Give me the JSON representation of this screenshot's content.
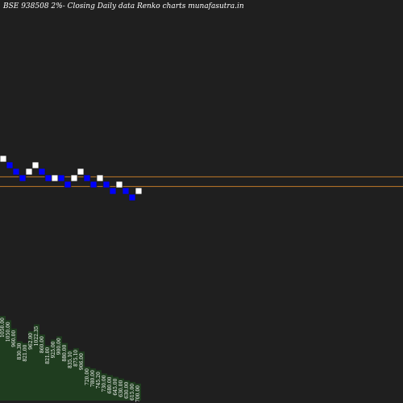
{
  "title": "BSE 938508  2%-  Closing Daily data  Renko  charts munafasutra.in",
  "colors": {
    "background": "#1f1f1f",
    "up_brick": "#ffffff",
    "down_brick": "#0000ff",
    "brick_outline": "#1f1f1f",
    "level_line": "#c07a2a",
    "volume_fill": "#1f3d1f"
  },
  "chart_data": {
    "type": "renko",
    "brick_size_label": "2%",
    "bricks": [
      {
        "dir": "up",
        "level": 0
      },
      {
        "dir": "down",
        "level": -1
      },
      {
        "dir": "down",
        "level": -2
      },
      {
        "dir": "down",
        "level": -3
      },
      {
        "dir": "up",
        "level": -2
      },
      {
        "dir": "up",
        "level": -1
      },
      {
        "dir": "down",
        "level": -2
      },
      {
        "dir": "down",
        "level": -3
      },
      {
        "dir": "up",
        "level": -3
      },
      {
        "dir": "down",
        "level": -3
      },
      {
        "dir": "down",
        "level": -4
      },
      {
        "dir": "up",
        "level": -3
      },
      {
        "dir": "up",
        "level": -2
      },
      {
        "dir": "down",
        "level": -3
      },
      {
        "dir": "down",
        "level": -4
      },
      {
        "dir": "up",
        "level": -3
      },
      {
        "dir": "down",
        "level": -4
      },
      {
        "dir": "down",
        "level": -5
      },
      {
        "dir": "up",
        "level": -4
      },
      {
        "dir": "down",
        "level": -5
      },
      {
        "dir": "down",
        "level": -6
      },
      {
        "dir": "up",
        "level": -5
      }
    ],
    "reference_levels": [
      -3.3,
      -4.8
    ],
    "volume": {
      "labels": [
        "1050.00",
        "1050.00",
        "960.00",
        "830.30",
        "821.00",
        "962.00",
        "1022.35",
        "860.00",
        "821.00",
        "925.00",
        "900.00",
        "880.00",
        "835.10",
        "875.10",
        "906.00",
        "720.00",
        "780.00",
        "745.20",
        "730.00",
        "680.00",
        "645.00",
        "630.00",
        "630.00",
        "615.00",
        "700.00"
      ],
      "values": [
        100,
        95,
        85,
        70,
        68,
        82,
        90,
        78,
        65,
        72,
        76,
        68,
        60,
        62,
        58,
        40,
        38,
        36,
        32,
        30,
        28,
        26,
        24,
        22,
        20
      ]
    }
  }
}
